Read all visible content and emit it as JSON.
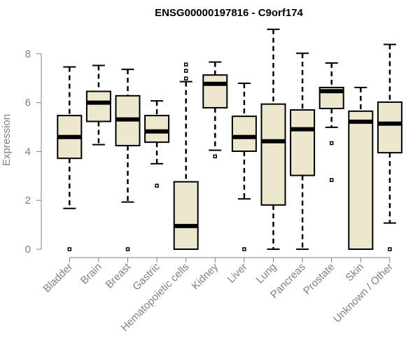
{
  "chart_data": {
    "type": "boxplot",
    "title": "ENSG00000197816 - C9orf174",
    "xlabel": "",
    "ylabel": "Expression",
    "ylim": [
      0,
      8
    ],
    "yticks": [
      0,
      2,
      4,
      6,
      8
    ],
    "grid": false,
    "box_color": "#EDE8CD",
    "categories": [
      "Bladder",
      "Brain",
      "Breast",
      "Gastric",
      "Hematopoietic cells",
      "Kidney",
      "Liver",
      "Lung",
      "Pancreas",
      "Prostate",
      "Skin",
      "Unknown / Other"
    ],
    "boxes": [
      {
        "name": "Bladder",
        "whisker_low": 1.67,
        "q1": 3.72,
        "median": 4.59,
        "q3": 5.47,
        "whisker_high": 7.46,
        "outliers": [
          0
        ]
      },
      {
        "name": "Brain",
        "whisker_low": 4.28,
        "q1": 5.23,
        "median": 6.0,
        "q3": 6.46,
        "whisker_high": 7.52,
        "outliers": []
      },
      {
        "name": "Breast",
        "whisker_low": 1.93,
        "q1": 4.24,
        "median": 5.31,
        "q3": 6.28,
        "whisker_high": 7.36,
        "outliers": [
          0
        ]
      },
      {
        "name": "Gastric",
        "whisker_low": 3.5,
        "q1": 4.38,
        "median": 4.82,
        "q3": 5.47,
        "whisker_high": 6.07,
        "outliers": [
          2.6
        ]
      },
      {
        "name": "Hematopoietic cells",
        "whisker_low": 0,
        "q1": 0,
        "median": 0.95,
        "q3": 2.76,
        "whisker_high": 6.86,
        "outliers": [
          6.99,
          7.3,
          7.56
        ]
      },
      {
        "name": "Kidney",
        "whisker_low": 4.05,
        "q1": 5.79,
        "median": 6.77,
        "q3": 7.13,
        "whisker_high": 7.66,
        "outliers": [
          3.8
        ]
      },
      {
        "name": "Liver",
        "whisker_low": 2.06,
        "q1": 4.01,
        "median": 4.59,
        "q3": 5.44,
        "whisker_high": 6.79,
        "outliers": [
          0
        ]
      },
      {
        "name": "Lung",
        "whisker_low": 0,
        "q1": 1.81,
        "median": 4.42,
        "q3": 5.94,
        "whisker_high": 9.0,
        "outliers": []
      },
      {
        "name": "Pancreas",
        "whisker_low": 0,
        "q1": 3.02,
        "median": 4.91,
        "q3": 5.7,
        "whisker_high": 8.02,
        "outliers": []
      },
      {
        "name": "Prostate",
        "whisker_low": 4.99,
        "q1": 5.76,
        "median": 6.47,
        "q3": 6.62,
        "whisker_high": 7.62,
        "outliers": [
          4.34,
          2.83
        ]
      },
      {
        "name": "Skin",
        "whisker_low": 0,
        "q1": 0,
        "median": 5.22,
        "q3": 5.65,
        "whisker_high": 6.62,
        "outliers": []
      },
      {
        "name": "Unknown / Other",
        "whisker_low": 1.07,
        "q1": 3.95,
        "median": 5.14,
        "q3": 6.02,
        "whisker_high": 8.38,
        "outliers": [
          0
        ]
      }
    ]
  }
}
